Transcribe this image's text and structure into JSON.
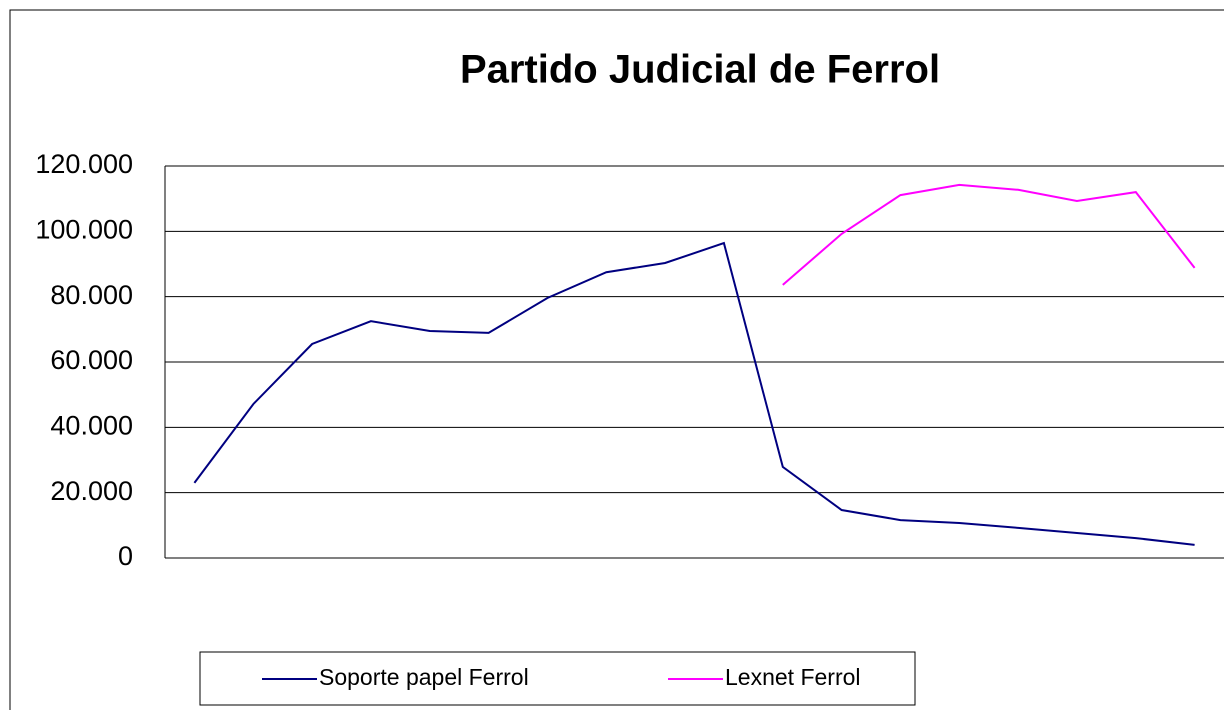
{
  "chart_data": {
    "type": "line",
    "title": "Partido Judicial de Ferrol",
    "categories": [
      null,
      null,
      null,
      null,
      null,
      null,
      null,
      null,
      null,
      null,
      null,
      null,
      null,
      null,
      null,
      null,
      null,
      null
    ],
    "series": [
      {
        "name": "Soporte papel Ferrol",
        "color": "#000080",
        "values": [
          23000,
          47100,
          65500,
          72500,
          69500,
          68900,
          79600,
          87500,
          90300,
          96400,
          27900,
          14700,
          11600,
          10700,
          9200,
          7650,
          6100,
          4000
        ]
      },
      {
        "name": "Lexnet Ferrol",
        "color": "#ff00ff",
        "values": [
          null,
          null,
          null,
          null,
          null,
          null,
          null,
          null,
          null,
          null,
          83600,
          99200,
          111100,
          114200,
          112700,
          109300,
          112000,
          88800
        ]
      }
    ],
    "ylim": [
      0,
      120000
    ],
    "yticks": [
      0,
      {
        "value": 20000,
        "label": "20.000"
      },
      {
        "value": 40000,
        "label": "40.000"
      },
      {
        "value": 60000,
        "label": "60.000"
      },
      {
        "value": 80000,
        "label": "80.000"
      },
      {
        "value": 100000,
        "label": "100.000"
      },
      {
        "value": 120000,
        "label": "120.000"
      }
    ],
    "grid": true,
    "legend": "bottom"
  }
}
